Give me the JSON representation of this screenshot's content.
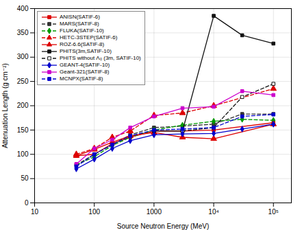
{
  "chart_data": {
    "type": "line",
    "xlabel": "Source Neutron Energy (MeV)",
    "ylabel": "Attenuation Length (g cm⁻²)",
    "log": "x",
    "grid": true,
    "legend": "upper left",
    "xlim": [
      10,
      200000
    ],
    "ylim": [
      0,
      400
    ],
    "xticks": [
      10,
      100,
      1000,
      {
        "value": 10000,
        "label": "10⁴"
      },
      {
        "value": 100000,
        "label": "10⁵"
      }
    ],
    "yticks": [
      0,
      50,
      100,
      150,
      200,
      250,
      300,
      350,
      400
    ],
    "series": [
      {
        "name": "ANISN(SATIF-6)",
        "color": "#dd0000",
        "line_style": "solid",
        "marker": "square",
        "x": [
          50,
          100,
          200,
          400,
          1000,
          3000,
          10000,
          100000
        ],
        "values": [
          97,
          100,
          122,
          135,
          148,
          148,
          150,
          165
        ]
      },
      {
        "name": "MARS(SATIF-8)",
        "color": "#333333",
        "line_style": "dashed",
        "marker": "square",
        "x": [
          50,
          100,
          200,
          400,
          1000,
          3000,
          10000,
          30000,
          100000
        ],
        "values": [
          78,
          100,
          120,
          140,
          155,
          158,
          162,
          183,
          183
        ]
      },
      {
        "name": "FLUKA(SATIF-10)",
        "color": "#009900",
        "line_style": "dashed",
        "marker": "diamond",
        "x": [
          50,
          100,
          200,
          400,
          1000,
          3000,
          10000,
          30000,
          100000
        ],
        "values": [
          78,
          95,
          118,
          135,
          150,
          160,
          168,
          172,
          170
        ]
      },
      {
        "name": "HETC-3STEP(SATIF-6)",
        "color": "#dd0000",
        "line_style": "dashed",
        "marker": "triangle",
        "x": [
          50,
          100,
          200,
          400,
          1000,
          3000,
          10000,
          100000
        ],
        "values": [
          100,
          112,
          135,
          148,
          180,
          185,
          200,
          235
        ]
      },
      {
        "name": "ROZ-6.6(SATIF-8)",
        "color": "#dd0000",
        "line_style": "solid",
        "marker": "triangle",
        "x": [
          50,
          100,
          200,
          400,
          1000,
          3000,
          10000,
          100000
        ],
        "values": [
          97,
          110,
          125,
          138,
          145,
          135,
          132,
          162
        ]
      },
      {
        "name": "PHITS(3m,SATIF-10)",
        "color": "#111111",
        "line_style": "solid",
        "marker": "square",
        "x": [
          1000,
          3000,
          10000,
          30000,
          100000
        ],
        "values": [
          148,
          148,
          385,
          345,
          328
        ]
      },
      {
        "name": "PHITS without Λ₀ (3m, SATIF-10)",
        "color": "#111111",
        "line_style": "dashed",
        "marker": "square-open",
        "x": [
          3000,
          10000,
          30000,
          100000
        ],
        "values": [
          148,
          155,
          218,
          245
        ]
      },
      {
        "name": "GEANT-4(SATIF-10)",
        "color": "#0000cc",
        "line_style": "solid",
        "marker": "diamond",
        "x": [
          50,
          100,
          200,
          400,
          1000,
          3000,
          10000,
          30000,
          100000
        ],
        "values": [
          70,
          90,
          112,
          128,
          140,
          142,
          143,
          152,
          162
        ]
      },
      {
        "name": "Geant-321(SATIF-8)",
        "color": "#cc00cc",
        "line_style": "solid",
        "marker": "square",
        "x": [
          50,
          100,
          200,
          400,
          1000,
          3000,
          10000,
          30000,
          100000
        ],
        "values": [
          80,
          112,
          130,
          155,
          178,
          195,
          198,
          230,
          222
        ]
      },
      {
        "name": "MCNPX(SATIF-8)",
        "color": "#0000cc",
        "line_style": "dashed",
        "marker": "square",
        "x": [
          50,
          100,
          200,
          400,
          1000,
          3000,
          10000,
          30000,
          100000
        ],
        "values": [
          75,
          100,
          120,
          138,
          150,
          152,
          155,
          178,
          182
        ]
      }
    ]
  }
}
